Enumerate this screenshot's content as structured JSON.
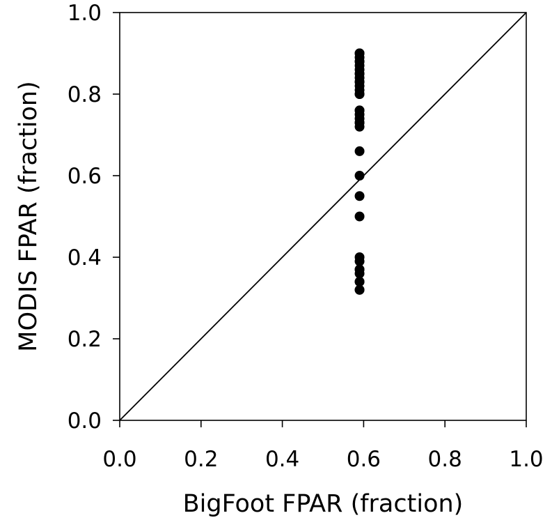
{
  "chart_data": {
    "type": "scatter",
    "title": "",
    "xlabel": "BigFoot FPAR (fraction)",
    "ylabel": "MODIS FPAR (fraction)",
    "xlim": [
      0.0,
      1.0
    ],
    "ylim": [
      0.0,
      1.0
    ],
    "xticks": [
      "0.0",
      "0.2",
      "0.4",
      "0.6",
      "0.8",
      "1.0"
    ],
    "yticks": [
      "0.0",
      "0.2",
      "0.4",
      "0.6",
      "0.8",
      "1.0"
    ],
    "grid": false,
    "legend": "none",
    "reference_line": {
      "type": "1:1",
      "from": [
        0.0,
        0.0
      ],
      "to": [
        1.0,
        1.0
      ]
    },
    "marker_color": "#000000",
    "series": [
      {
        "x": [
          0.59,
          0.59,
          0.59,
          0.59,
          0.59,
          0.59,
          0.59,
          0.59,
          0.59,
          0.59,
          0.59,
          0.59,
          0.59,
          0.59,
          0.59,
          0.59,
          0.59,
          0.59,
          0.59,
          0.59,
          0.59,
          0.59,
          0.59,
          0.59,
          0.59,
          0.59,
          0.59,
          0.59,
          0.59,
          0.59,
          0.59,
          0.59,
          0.59,
          0.59,
          0.59,
          0.59
        ],
        "y": [
          0.9,
          0.89,
          0.88,
          0.87,
          0.86,
          0.85,
          0.84,
          0.83,
          0.82,
          0.81,
          0.8,
          0.76,
          0.75,
          0.74,
          0.73,
          0.72,
          0.66,
          0.6,
          0.55,
          0.5,
          0.4,
          0.39,
          0.37,
          0.36,
          0.34,
          0.32,
          0.9,
          0.88,
          0.85,
          0.83,
          0.8,
          0.76,
          0.73,
          0.37,
          0.34,
          0.32
        ]
      }
    ]
  }
}
